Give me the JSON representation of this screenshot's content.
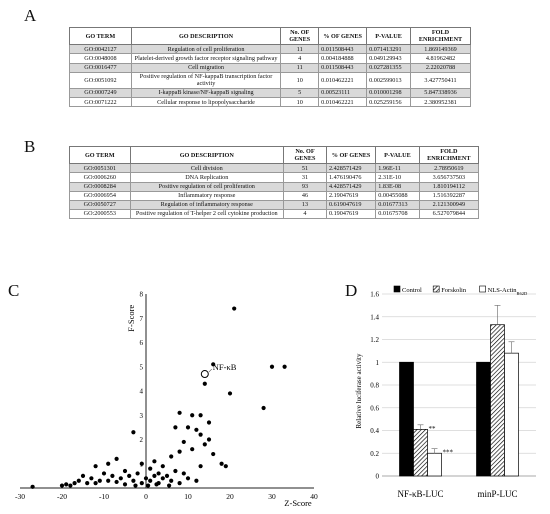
{
  "panels": {
    "A": "A",
    "B": "B",
    "C": "C",
    "D": "D"
  },
  "table_a": {
    "headers": [
      "GO TERM",
      "GO DESCRIPTION",
      "No. OF GENES",
      "% OF GENES",
      "P-VALUE",
      "FOLD ENRICHMENT"
    ],
    "rows": [
      [
        "GO:0042127",
        "Regulation of cell proliferation",
        "11",
        "0.011508443",
        "0.071413291",
        "1.869149369"
      ],
      [
        "GO:0048008",
        "Platelet-derived growth factor receptor signaling pathway",
        "4",
        "0.004184888",
        "0.049129943",
        "4.81962482"
      ],
      [
        "GO:0016477",
        "Cell migration",
        "11",
        "0.011508443",
        "0.027281355",
        "2.22020788"
      ],
      [
        "GO:0051092",
        "Positive regulation of NF-kappaB transcription factor activity",
        "10",
        "0.010462221",
        "0.002599013",
        "3.427750411"
      ],
      [
        "GO:0007249",
        "I-kappaB kinase/NF-kappaB signaling",
        "5",
        "0.00523111",
        "0.010001298",
        "5.847338936"
      ],
      [
        "GO:0071222",
        "Cellular response to lipopolysaccharide",
        "10",
        "0.010462221",
        "0.025259156",
        "2.380952381"
      ]
    ]
  },
  "table_b": {
    "headers": [
      "GO TERM",
      "GO DESCRIPTION",
      "No. OF GENES",
      "% OF GENES",
      "P-VALUE",
      "FOLD ENRICHMENT"
    ],
    "rows": [
      [
        "GO:0051301",
        "Cell division",
        "51",
        "2.428571429",
        "1.96E-11",
        "2.78950619"
      ],
      [
        "GO:0006260",
        "DNA Replication",
        "31",
        "1.476190476",
        "2.31E-10",
        "3.656737503"
      ],
      [
        "GO:0008284",
        "Positive regulation of cell proliferation",
        "93",
        "4.428571429",
        "1.83E-08",
        "1.810194112"
      ],
      [
        "GO:0006954",
        "Inflammatory response",
        "46",
        "2.19047619",
        "0.00455088",
        "1.516392287"
      ],
      [
        "GO:0050727",
        "Regulation of inflammatory response",
        "13",
        "0.619047619",
        "0.01677313",
        "2.121300949"
      ],
      [
        "GO:2000553",
        "Positive regulation of T-helper 2 cell cytokine production",
        "4",
        "0.19047619",
        "0.01675708",
        "6.527079844"
      ]
    ]
  },
  "chart_data": [
    {
      "type": "scatter",
      "title": "",
      "xlabel": "Z-Score",
      "ylabel": "F-Score",
      "xlim": [
        -30,
        40
      ],
      "ylim": [
        0,
        8
      ],
      "xticks": [
        -30,
        -20,
        -10,
        0,
        10,
        20,
        30,
        40
      ],
      "yticks": [
        1,
        2,
        3,
        4,
        5,
        6,
        7,
        8
      ],
      "grid": false,
      "highlight": {
        "label": "NF-κB",
        "x": 14,
        "y": 4.7
      },
      "points": [
        [
          21,
          7.4
        ],
        [
          30,
          5
        ],
        [
          33,
          5
        ],
        [
          16,
          5.1
        ],
        [
          14,
          4.3
        ],
        [
          20,
          3.9
        ],
        [
          28,
          3.3
        ],
        [
          8,
          3.1
        ],
        [
          11,
          3.0
        ],
        [
          13,
          3.0
        ],
        [
          15,
          2.7
        ],
        [
          7,
          2.5
        ],
        [
          10,
          2.5
        ],
        [
          12,
          2.4
        ],
        [
          13,
          2.2
        ],
        [
          -3,
          2.3
        ],
        [
          15,
          2.0
        ],
        [
          9,
          1.9
        ],
        [
          14,
          1.8
        ],
        [
          11,
          1.6
        ],
        [
          16,
          1.4
        ],
        [
          8,
          1.5
        ],
        [
          6,
          1.3
        ],
        [
          18,
          1.0
        ],
        [
          13,
          0.9
        ],
        [
          19,
          0.9
        ],
        [
          -1,
          1.0
        ],
        [
          -7,
          1.2
        ],
        [
          -9,
          1.0
        ],
        [
          -12,
          0.9
        ],
        [
          2,
          1.1
        ],
        [
          4,
          0.9
        ],
        [
          1,
          0.8
        ],
        [
          3,
          0.6
        ],
        [
          5,
          0.5
        ],
        [
          7,
          0.7
        ],
        [
          9,
          0.6
        ],
        [
          -2,
          0.6
        ],
        [
          -4,
          0.5
        ],
        [
          -5,
          0.7
        ],
        [
          -6,
          0.4
        ],
        [
          -8,
          0.5
        ],
        [
          -10,
          0.6
        ],
        [
          -11,
          0.3
        ],
        [
          -13,
          0.4
        ],
        [
          -14,
          0.2
        ],
        [
          -15,
          0.5
        ],
        [
          -16,
          0.3
        ],
        [
          -17,
          0.2
        ],
        [
          -18,
          0.1
        ],
        [
          -19,
          0.15
        ],
        [
          -20,
          0.1
        ],
        [
          -27,
          0.05
        ],
        [
          -3,
          0.3
        ],
        [
          -1,
          0.2
        ],
        [
          0,
          0.4
        ],
        [
          1,
          0.3
        ],
        [
          2,
          0.5
        ],
        [
          3,
          0.2
        ],
        [
          4,
          0.4
        ],
        [
          6,
          0.3
        ],
        [
          8,
          0.2
        ],
        [
          10,
          0.4
        ],
        [
          12,
          0.3
        ],
        [
          -5,
          0.15
        ],
        [
          -7,
          0.25
        ],
        [
          -9,
          0.3
        ],
        [
          -12,
          0.2
        ],
        [
          0.5,
          0.1
        ],
        [
          2.5,
          0.15
        ],
        [
          5.5,
          0.1
        ],
        [
          -2.5,
          0.1
        ]
      ]
    },
    {
      "type": "bar",
      "title": "",
      "xlabel": "",
      "ylabel": "Relative luciferase activity",
      "ylim": [
        0,
        1.6
      ],
      "yticks": [
        0,
        0.2,
        0.4,
        0.6,
        0.8,
        1,
        1.2,
        1.4,
        1.6
      ],
      "grid": true,
      "legend_position": "top",
      "categories": [
        "NF-κB-LUC",
        "minP-LUC"
      ],
      "series": [
        {
          "name": "Control",
          "fill": "#000000",
          "values": [
            1.0,
            1.0
          ],
          "errors": [
            0,
            0
          ]
        },
        {
          "name": "Forskolin",
          "fill": "hatch",
          "values": [
            0.41,
            1.33
          ],
          "errors": [
            0.04,
            0.17
          ]
        },
        {
          "name": "NLS-Actin",
          "name_sub": "R62D",
          "fill": "#ffffff",
          "values": [
            0.2,
            1.08
          ],
          "errors": [
            0.04,
            0.1
          ]
        }
      ],
      "annotations": [
        {
          "category": 0,
          "series": 1,
          "text": "**"
        },
        {
          "category": 0,
          "series": 2,
          "text": "***"
        }
      ]
    }
  ]
}
